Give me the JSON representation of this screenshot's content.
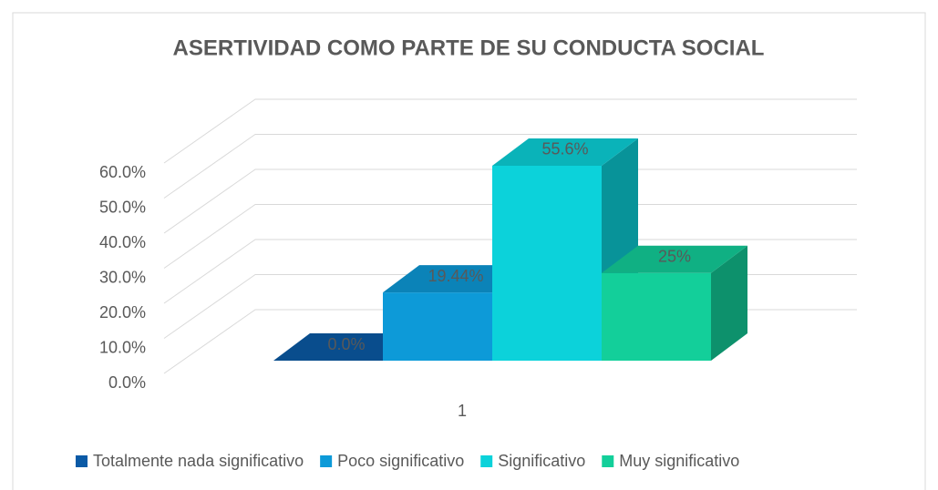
{
  "chart_data": {
    "type": "bar3d",
    "title": "ASERTIVIDAD COMO PARTE DE SU CONDUCTA SOCIAL",
    "categories": [
      "1"
    ],
    "series": [
      {
        "name": "Totalmente nada significativo",
        "color": "#0b5aa6",
        "values": [
          0
        ],
        "value_labels": [
          "0.0%"
        ]
      },
      {
        "name": "Poco significativo",
        "color": "#0d9ad8",
        "values": [
          19.44
        ],
        "value_labels": [
          "19.44%"
        ]
      },
      {
        "name": "Significativo",
        "color": "#0cd2da",
        "values": [
          55.6
        ],
        "value_labels": [
          "55.6%"
        ]
      },
      {
        "name": "Muy significativo",
        "color": "#13cf9a",
        "values": [
          25
        ],
        "value_labels": [
          "25%"
        ]
      }
    ],
    "ylim": [
      0,
      60
    ],
    "yticks": [
      {
        "value": 0,
        "label": "0.0%"
      },
      {
        "value": 10,
        "label": "10.0%"
      },
      {
        "value": 20,
        "label": "20.0%"
      },
      {
        "value": 30,
        "label": "30.0%"
      },
      {
        "value": 40,
        "label": "40.0%"
      },
      {
        "value": 50,
        "label": "50.0%"
      },
      {
        "value": 60,
        "label": "60.0%"
      }
    ],
    "grid": true,
    "legend": "bottom"
  }
}
